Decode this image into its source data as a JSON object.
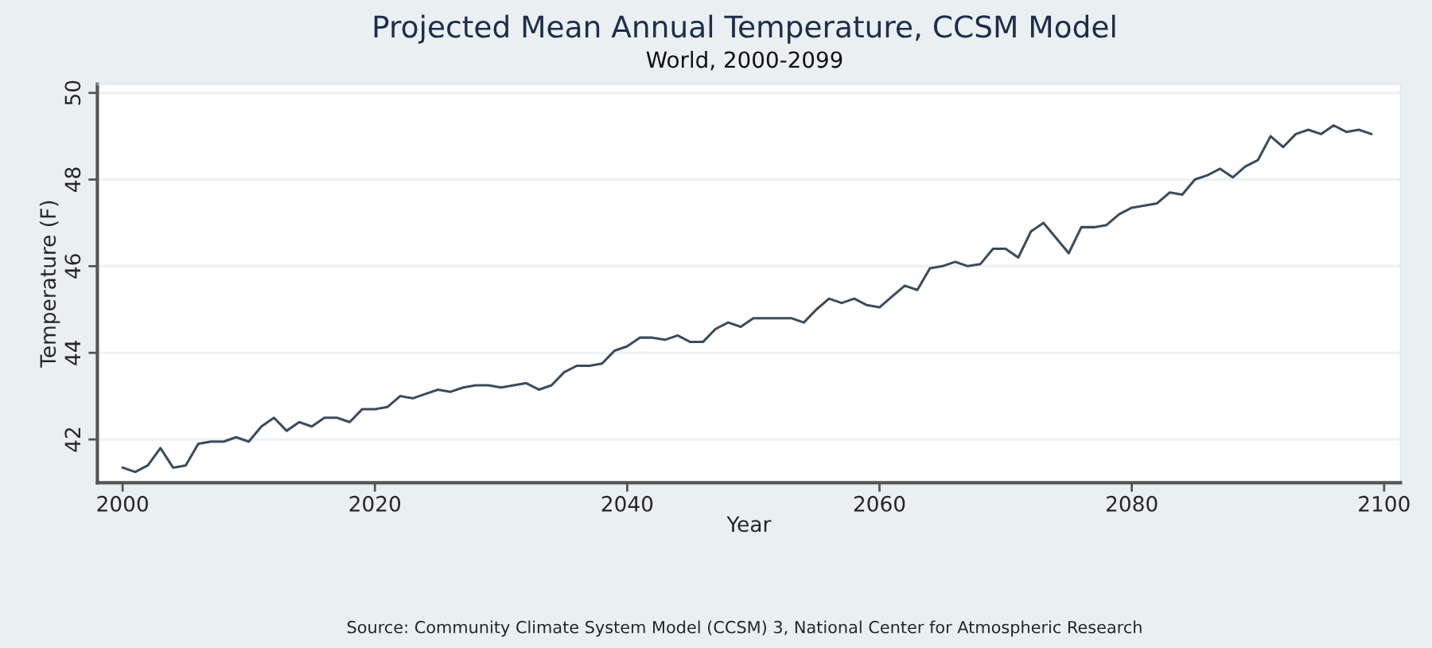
{
  "chart_data": {
    "type": "line",
    "title": "Projected Mean Annual Temperature, CCSM Model",
    "subtitle": "World, 2000-2099",
    "xlabel": "Year",
    "ylabel": "Temperature (F)",
    "annotations": [
      "Source: Community Climate System Model (CCSM) 3, National Center for Atmospheric Research"
    ],
    "x": [
      2000,
      2001,
      2002,
      2003,
      2004,
      2005,
      2006,
      2007,
      2008,
      2009,
      2010,
      2011,
      2012,
      2013,
      2014,
      2015,
      2016,
      2017,
      2018,
      2019,
      2020,
      2021,
      2022,
      2023,
      2024,
      2025,
      2026,
      2027,
      2028,
      2029,
      2030,
      2031,
      2032,
      2033,
      2034,
      2035,
      2036,
      2037,
      2038,
      2039,
      2040,
      2041,
      2042,
      2043,
      2044,
      2045,
      2046,
      2047,
      2048,
      2049,
      2050,
      2051,
      2052,
      2053,
      2054,
      2055,
      2056,
      2057,
      2058,
      2059,
      2060,
      2061,
      2062,
      2063,
      2064,
      2065,
      2066,
      2067,
      2068,
      2069,
      2070,
      2071,
      2072,
      2073,
      2074,
      2075,
      2076,
      2077,
      2078,
      2079,
      2080,
      2081,
      2082,
      2083,
      2084,
      2085,
      2086,
      2087,
      2088,
      2089,
      2090,
      2091,
      2092,
      2093,
      2094,
      2095,
      2096,
      2097,
      2098,
      2099
    ],
    "series": [
      {
        "color": "#3c4c5c",
        "values": [
          41.35,
          41.25,
          41.4,
          41.8,
          41.35,
          41.4,
          41.9,
          41.95,
          41.95,
          42.05,
          41.95,
          42.3,
          42.5,
          42.2,
          42.4,
          42.3,
          42.5,
          42.5,
          42.4,
          42.7,
          42.7,
          42.75,
          43.0,
          42.95,
          43.05,
          43.15,
          43.1,
          43.2,
          43.25,
          43.25,
          43.2,
          43.25,
          43.3,
          43.15,
          43.25,
          43.55,
          43.7,
          43.7,
          43.75,
          44.05,
          44.15,
          44.35,
          44.35,
          44.3,
          44.4,
          44.25,
          44.25,
          44.55,
          44.7,
          44.6,
          44.8,
          44.8,
          44.8,
          44.8,
          44.7,
          45.0,
          45.25,
          45.15,
          45.25,
          45.1,
          45.05,
          45.3,
          45.55,
          45.45,
          45.95,
          46.0,
          46.1,
          46.0,
          46.05,
          46.4,
          46.4,
          46.2,
          46.8,
          47.0,
          46.65,
          46.3,
          46.9,
          46.9,
          46.95,
          47.2,
          47.35,
          47.4,
          47.45,
          47.7,
          47.65,
          48.0,
          48.1,
          48.25,
          48.05,
          48.3,
          48.45,
          49.0,
          48.75,
          49.05,
          49.15,
          49.05,
          49.25,
          49.1,
          49.15,
          49.05
        ]
      }
    ],
    "xlim": [
      1998,
      2101.3
    ],
    "ylim": [
      41,
      50.2
    ],
    "xticks": [
      2000,
      2020,
      2040,
      2060,
      2080,
      2100
    ],
    "yticks": [
      42,
      44,
      46,
      48,
      50
    ],
    "grid": "y",
    "legend": false
  }
}
